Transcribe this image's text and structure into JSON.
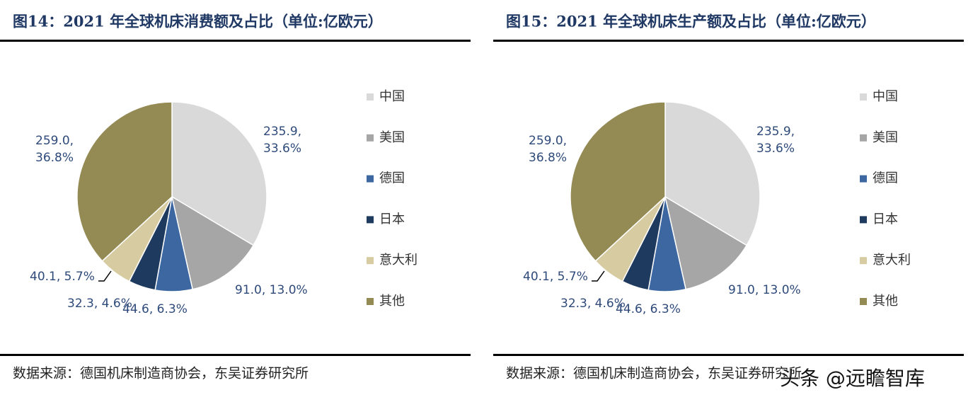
{
  "chart_data": [
    {
      "type": "pie",
      "title": "图14：2021 年全球机床消费额及占比（单位:亿欧元）",
      "categories": [
        "中国",
        "美国",
        "德国",
        "日本",
        "意大利",
        "其他"
      ],
      "values": [
        235.9,
        91.0,
        44.6,
        32.3,
        40.1,
        259.0
      ],
      "value_labels": [
        "235.9, 33.6%",
        "91.0, 13.0%",
        "44.6, 6.3%",
        "32.3, 4.6%",
        "40.1, 5.7%",
        "259.0, 36.8%"
      ],
      "colors": [
        "#d9d9d9",
        "#a6a6a6",
        "#3c67a0",
        "#1f3a5f",
        "#d7cca1",
        "#948a54"
      ],
      "legend": "right",
      "source": "数据来源：德国机床制造商协会，东吴证券研究所"
    },
    {
      "type": "pie",
      "title": "图15：2021 年全球机床生产额及占比（单位:亿欧元）",
      "categories": [
        "中国",
        "美国",
        "德国",
        "日本",
        "意大利",
        "其他"
      ],
      "values": [
        235.9,
        91.0,
        44.6,
        32.3,
        40.1,
        259.0
      ],
      "value_labels": [
        "235.9, 33.6%",
        "91.0, 13.0%",
        "44.6, 6.3%",
        "32.3, 4.6%",
        "40.1, 5.7%",
        "259.0, 36.8%"
      ],
      "colors": [
        "#d9d9d9",
        "#a6a6a6",
        "#3c67a0",
        "#1f3a5f",
        "#d7cca1",
        "#948a54"
      ],
      "legend": "right",
      "source": "数据来源：德国机床制造商协会，东吴证券研究所"
    }
  ],
  "watermark": "头条 @远瞻智库"
}
